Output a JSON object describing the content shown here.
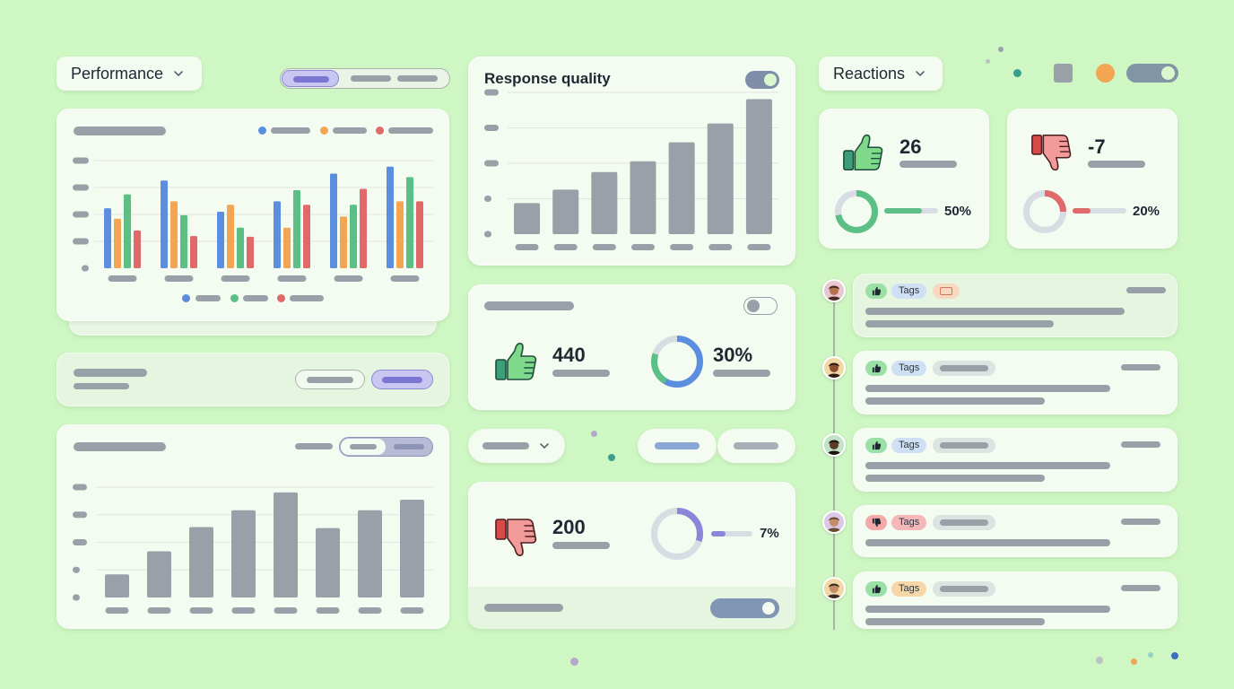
{
  "left": {
    "dropdown_label": "Performance",
    "grouped_chart_legend_colors": [
      "#5b8ede",
      "#f2a653",
      "#e06969"
    ],
    "bottom_legend_colors": [
      "#5b8ede",
      "#5cbf86",
      "#e06969"
    ]
  },
  "middle": {
    "response_title": "Response quality",
    "likes": {
      "value": "440",
      "percent": "30%"
    },
    "dislikes": {
      "value": "200",
      "percent": "7%"
    }
  },
  "right": {
    "dropdown_label": "Reactions",
    "thumbs_up_card": {
      "value": "26",
      "percent": "50%"
    },
    "thumbs_down_card": {
      "value": "-7",
      "percent": "20%"
    },
    "feed": [
      {
        "tag": "Tags",
        "reaction": "like"
      },
      {
        "tag": "Tags",
        "reaction": "like"
      },
      {
        "tag": "Tags",
        "reaction": "like"
      },
      {
        "tag": "Tags",
        "reaction": "dislike"
      },
      {
        "tag": "Tags",
        "reaction": "like"
      }
    ]
  },
  "colors": {
    "background": "#cff7c4",
    "card": "#f4fbf1",
    "accent_purple": "#8a86d8",
    "blue": "#5b8ede",
    "orange": "#f2a653",
    "green": "#5cbf86",
    "red": "#e06969",
    "gray_bar": "#9aa0a8"
  },
  "chart_data": [
    {
      "type": "bar",
      "series": [
        {
          "values": [
            8,
            12,
            7.5,
            9,
            13,
            14
          ]
        },
        {
          "values": [
            6.5,
            9,
            8.5,
            5.2,
            6.8,
            9
          ]
        },
        {
          "values": [
            10,
            7,
            5.2,
            10.6,
            8.5,
            12.5
          ]
        },
        {
          "values": [
            4.8,
            4,
            3.9,
            8.5,
            10.8,
            9
          ]
        }
      ],
      "ylim": [
        0,
        15
      ]
    },
    {
      "type": "bar",
      "values": [
        2.3,
        3.3,
        4.6,
        5.4,
        6.8,
        8.2,
        10
      ],
      "ylim": [
        0,
        10.5
      ]
    },
    {
      "type": "bar",
      "values": [
        2.2,
        4.4,
        6.7,
        8.3,
        10,
        6.6,
        8.3,
        9.3
      ],
      "ylim": [
        0,
        10.5
      ]
    }
  ],
  "icons": {
    "dropdown": "chevron-down-icon",
    "like": "thumbs-up-icon",
    "dislike": "thumbs-down-icon"
  }
}
